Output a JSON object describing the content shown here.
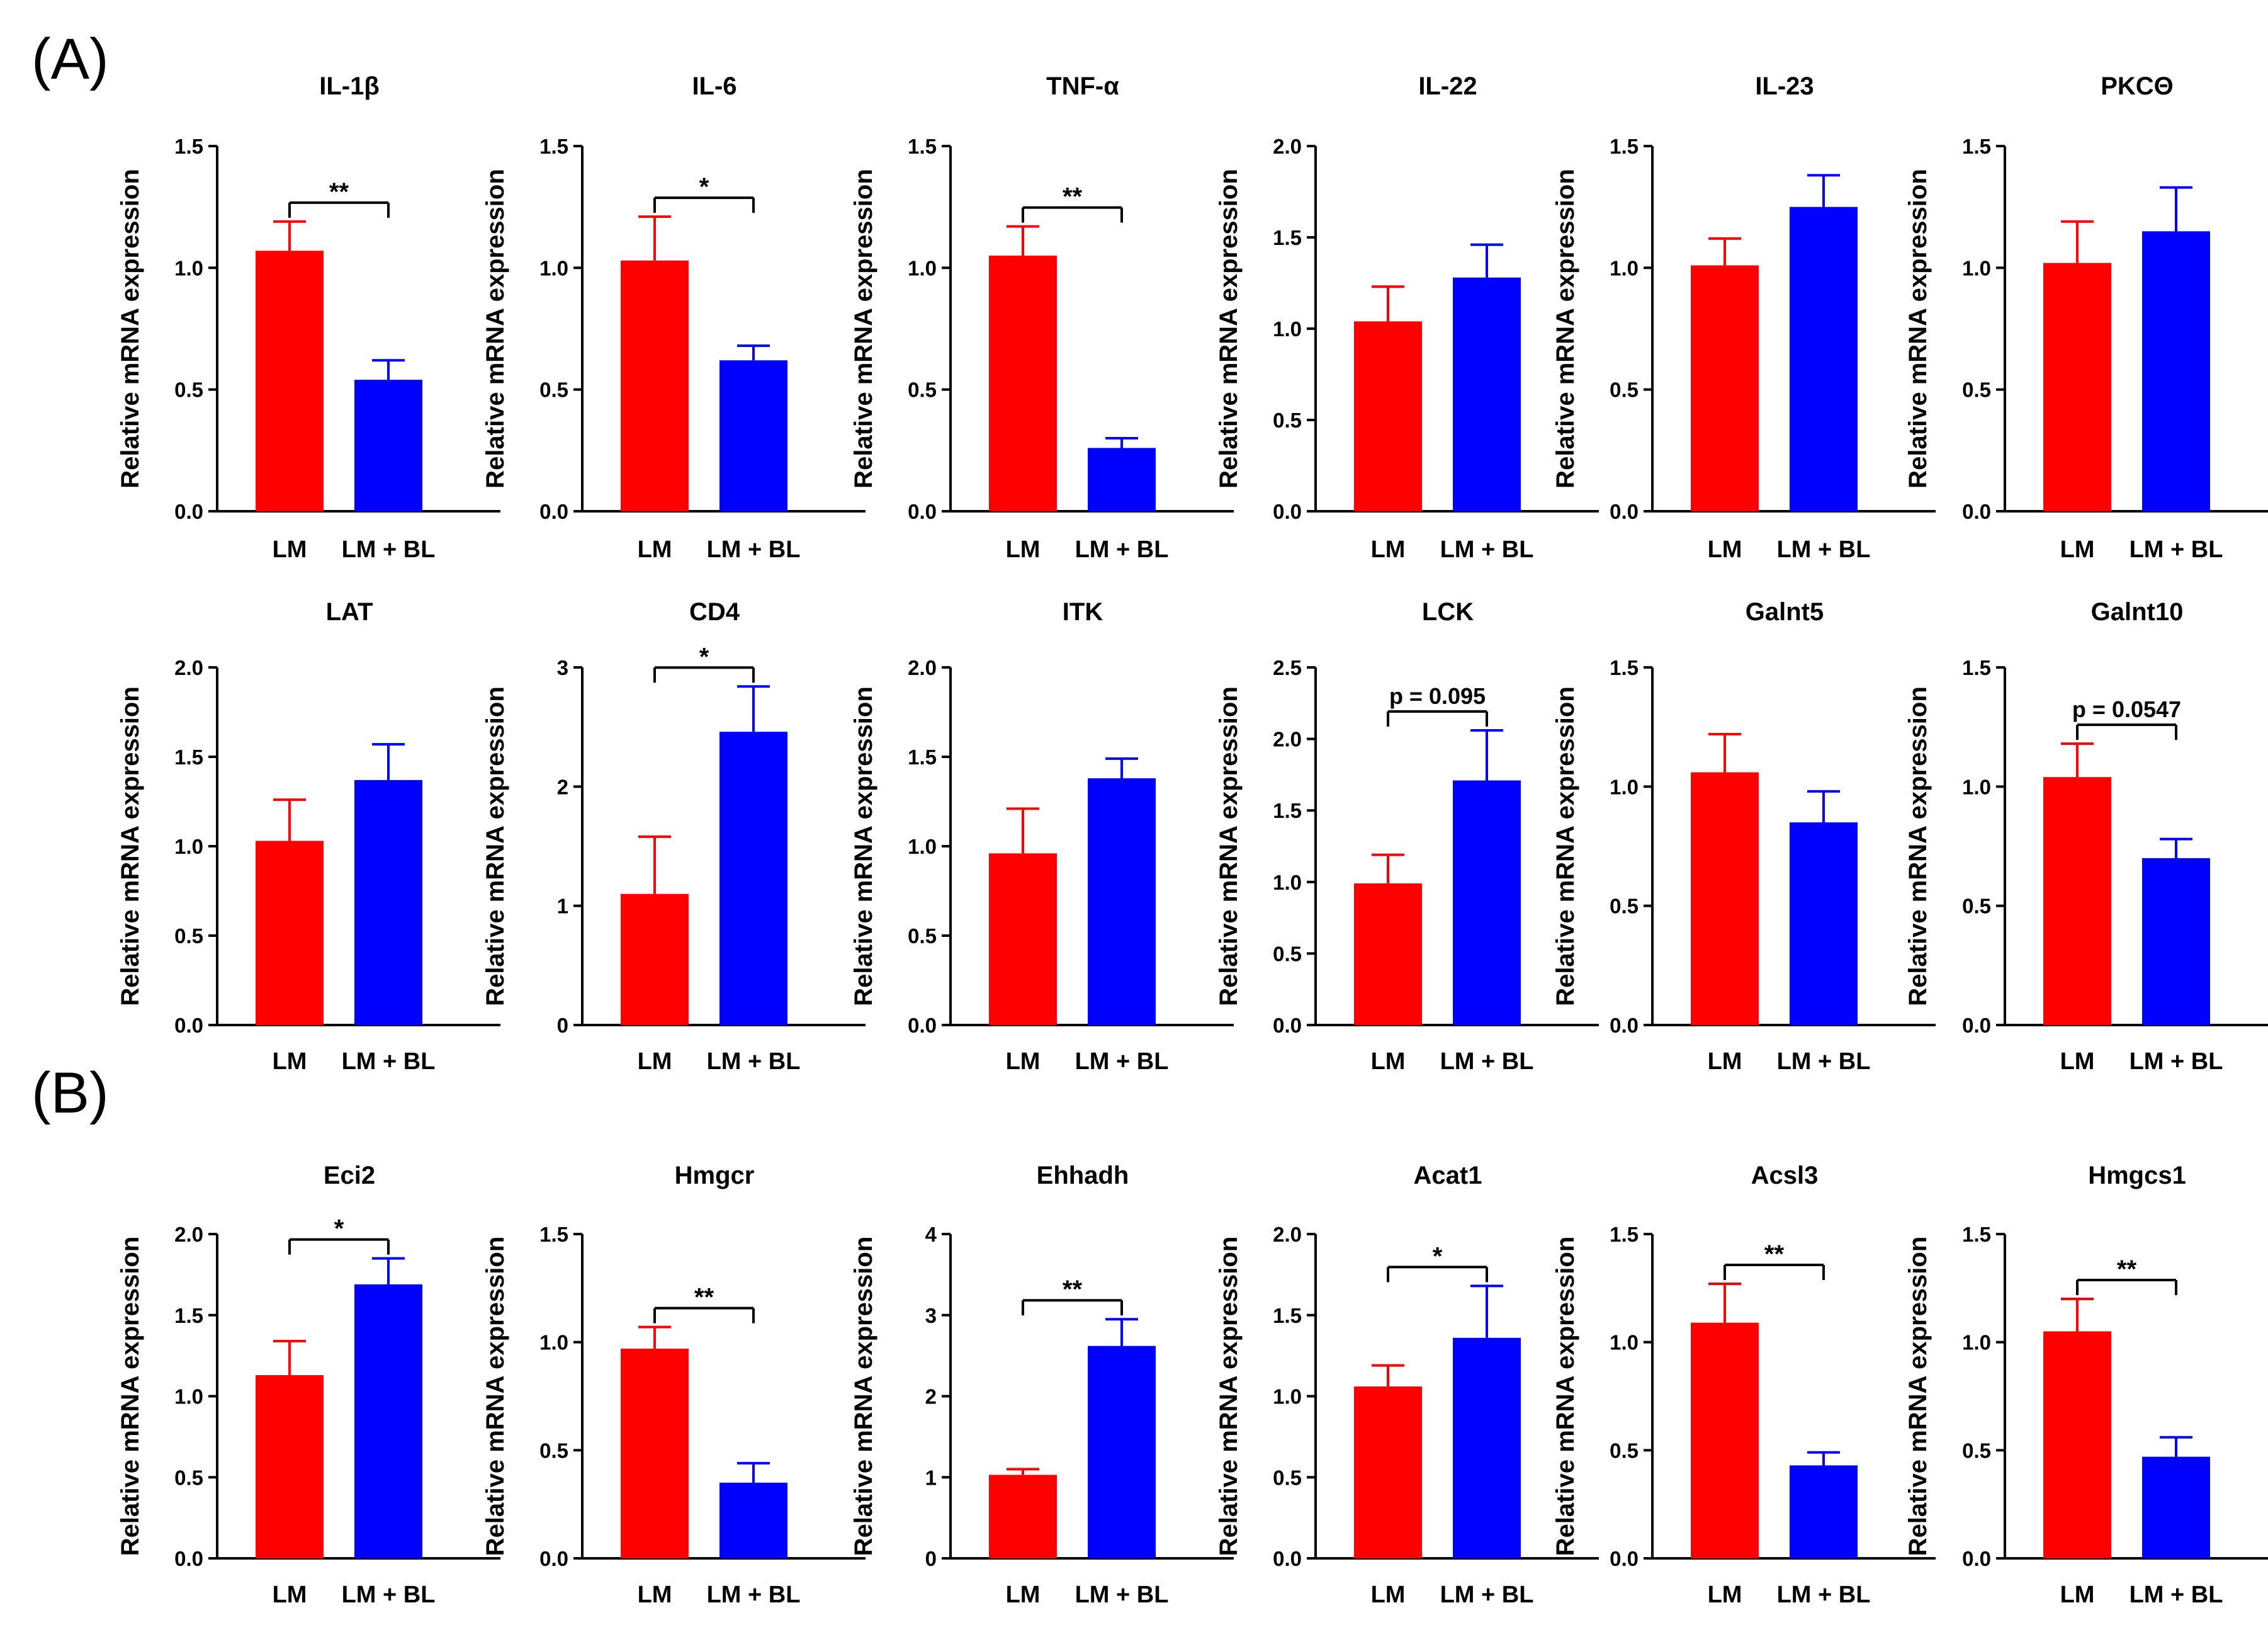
{
  "panels": [
    {
      "label": "(A)"
    },
    {
      "label": "(B)"
    }
  ],
  "chart_data": [
    {
      "type": "bar",
      "title": "IL-1β",
      "ylabel": "Relative mRNA expression",
      "ylim": [
        0,
        1.5
      ],
      "yticks": [
        "0.0",
        "0.5",
        "1.0",
        "1.5"
      ],
      "categories": [
        "LM",
        "LM + BL"
      ],
      "values": [
        1.07,
        0.54
      ],
      "errors": [
        0.12,
        0.08
      ],
      "significance": "**"
    },
    {
      "type": "bar",
      "title": "IL-6",
      "ylabel": "Relative mRNA expression",
      "ylim": [
        0,
        1.5
      ],
      "yticks": [
        "0.0",
        "0.5",
        "1.0",
        "1.5"
      ],
      "categories": [
        "LM",
        "LM + BL"
      ],
      "values": [
        1.03,
        0.62
      ],
      "errors": [
        0.18,
        0.06
      ],
      "significance": "*"
    },
    {
      "type": "bar",
      "title": "TNF-α",
      "ylabel": "Relative mRNA expression",
      "ylim": [
        0,
        1.5
      ],
      "yticks": [
        "0.0",
        "0.5",
        "1.0",
        "1.5"
      ],
      "categories": [
        "LM",
        "LM + BL"
      ],
      "values": [
        1.05,
        0.26
      ],
      "errors": [
        0.12,
        0.04
      ],
      "significance": "**"
    },
    {
      "type": "bar",
      "title": "IL-22",
      "ylabel": "Relative mRNA expression",
      "ylim": [
        0,
        2.0
      ],
      "yticks": [
        "0.0",
        "0.5",
        "1.0",
        "1.5",
        "2.0"
      ],
      "categories": [
        "LM",
        "LM + BL"
      ],
      "values": [
        1.04,
        1.28
      ],
      "errors": [
        0.19,
        0.18
      ],
      "significance": ""
    },
    {
      "type": "bar",
      "title": "IL-23",
      "ylabel": "Relative mRNA expression",
      "ylim": [
        0,
        1.5
      ],
      "yticks": [
        "0.0",
        "0.5",
        "1.0",
        "1.5"
      ],
      "categories": [
        "LM",
        "LM + BL"
      ],
      "values": [
        1.01,
        1.25
      ],
      "errors": [
        0.11,
        0.13
      ],
      "significance": ""
    },
    {
      "type": "bar",
      "title": "PKCΘ",
      "ylabel": "Relative mRNA expression",
      "ylim": [
        0,
        1.5
      ],
      "yticks": [
        "0.0",
        "0.5",
        "1.0",
        "1.5"
      ],
      "categories": [
        "LM",
        "LM + BL"
      ],
      "values": [
        1.02,
        1.15
      ],
      "errors": [
        0.17,
        0.18
      ],
      "significance": ""
    },
    {
      "type": "bar",
      "title": "LAT",
      "ylabel": "Relative mRNA expression",
      "ylim": [
        0,
        2.0
      ],
      "yticks": [
        "0.0",
        "0.5",
        "1.0",
        "1.5",
        "2.0"
      ],
      "categories": [
        "LM",
        "LM + BL"
      ],
      "values": [
        1.03,
        1.37
      ],
      "errors": [
        0.23,
        0.2
      ],
      "significance": ""
    },
    {
      "type": "bar",
      "title": "CD4",
      "ylabel": "Relative mRNA expression",
      "ylim": [
        0,
        3
      ],
      "yticks": [
        "0",
        "1",
        "2",
        "3"
      ],
      "categories": [
        "LM",
        "LM + BL"
      ],
      "values": [
        1.1,
        2.46
      ],
      "errors": [
        0.48,
        0.38
      ],
      "significance": "*"
    },
    {
      "type": "bar",
      "title": "ITK",
      "ylabel": "Relative mRNA expression",
      "ylim": [
        0,
        2.0
      ],
      "yticks": [
        "0.0",
        "0.5",
        "1.0",
        "1.5",
        "2.0"
      ],
      "categories": [
        "LM",
        "LM + BL"
      ],
      "values": [
        0.96,
        1.38
      ],
      "errors": [
        0.25,
        0.11
      ],
      "significance": ""
    },
    {
      "type": "bar",
      "title": "LCK",
      "ylabel": "Relative mRNA expression",
      "ylim": [
        0,
        2.5
      ],
      "yticks": [
        "0.0",
        "0.5",
        "1.0",
        "1.5",
        "2.0",
        "2.5"
      ],
      "categories": [
        "LM",
        "LM + BL"
      ],
      "values": [
        0.99,
        1.71
      ],
      "errors": [
        0.2,
        0.35
      ],
      "significance": "p = 0.095"
    },
    {
      "type": "bar",
      "title": "Galnt5",
      "ylabel": "Relative mRNA expression",
      "ylim": [
        0,
        1.5
      ],
      "yticks": [
        "0.0",
        "0.5",
        "1.0",
        "1.5"
      ],
      "categories": [
        "LM",
        "LM + BL"
      ],
      "values": [
        1.06,
        0.85
      ],
      "errors": [
        0.16,
        0.13
      ],
      "significance": ""
    },
    {
      "type": "bar",
      "title": "Galnt10",
      "ylabel": "Relative mRNA expression",
      "ylim": [
        0,
        1.5
      ],
      "yticks": [
        "0.0",
        "0.5",
        "1.0",
        "1.5"
      ],
      "categories": [
        "LM",
        "LM + BL"
      ],
      "values": [
        1.04,
        0.7
      ],
      "errors": [
        0.14,
        0.08
      ],
      "significance": "p = 0.0547"
    },
    {
      "type": "bar",
      "title": "Eci2",
      "ylabel": "Relative mRNA expression",
      "ylim": [
        0,
        2.0
      ],
      "yticks": [
        "0.0",
        "0.5",
        "1.0",
        "1.5",
        "2.0"
      ],
      "categories": [
        "LM",
        "LM + BL"
      ],
      "values": [
        1.13,
        1.69
      ],
      "errors": [
        0.21,
        0.16
      ],
      "significance": "*"
    },
    {
      "type": "bar",
      "title": "Hmgcr",
      "ylabel": "Relative mRNA expression",
      "ylim": [
        0,
        1.5
      ],
      "yticks": [
        "0.0",
        "0.5",
        "1.0",
        "1.5"
      ],
      "categories": [
        "LM",
        "LM + BL"
      ],
      "values": [
        0.97,
        0.35
      ],
      "errors": [
        0.1,
        0.09
      ],
      "significance": "**"
    },
    {
      "type": "bar",
      "title": "Ehhadh",
      "ylabel": "Relative mRNA expression",
      "ylim": [
        0,
        4
      ],
      "yticks": [
        "0",
        "1",
        "2",
        "3",
        "4"
      ],
      "categories": [
        "LM",
        "LM + BL"
      ],
      "values": [
        1.03,
        2.62
      ],
      "errors": [
        0.07,
        0.33
      ],
      "significance": "**"
    },
    {
      "type": "bar",
      "title": "Acat1",
      "ylabel": "Relative mRNA expression",
      "ylim": [
        0,
        2.0
      ],
      "yticks": [
        "0.0",
        "0.5",
        "1.0",
        "1.5",
        "2.0"
      ],
      "categories": [
        "LM",
        "LM + BL"
      ],
      "values": [
        1.06,
        1.36
      ],
      "errors": [
        0.13,
        0.32
      ],
      "significance": "*"
    },
    {
      "type": "bar",
      "title": "Acsl3",
      "ylabel": "Relative mRNA expression",
      "ylim": [
        0,
        1.5
      ],
      "yticks": [
        "0.0",
        "0.5",
        "1.0",
        "1.5"
      ],
      "categories": [
        "LM",
        "LM + BL"
      ],
      "values": [
        1.09,
        0.43
      ],
      "errors": [
        0.18,
        0.06
      ],
      "significance": "**"
    },
    {
      "type": "bar",
      "title": "Hmgcs1",
      "ylabel": "Relative mRNA expression",
      "ylim": [
        0,
        1.5
      ],
      "yticks": [
        "0.0",
        "0.5",
        "1.0",
        "1.5"
      ],
      "categories": [
        "LM",
        "LM + BL"
      ],
      "values": [
        1.05,
        0.47
      ],
      "errors": [
        0.15,
        0.09
      ],
      "significance": "**"
    }
  ],
  "colors": {
    "LM": "#ff0000",
    "LM + BL": "#0000ff",
    "axis": "#000000"
  }
}
